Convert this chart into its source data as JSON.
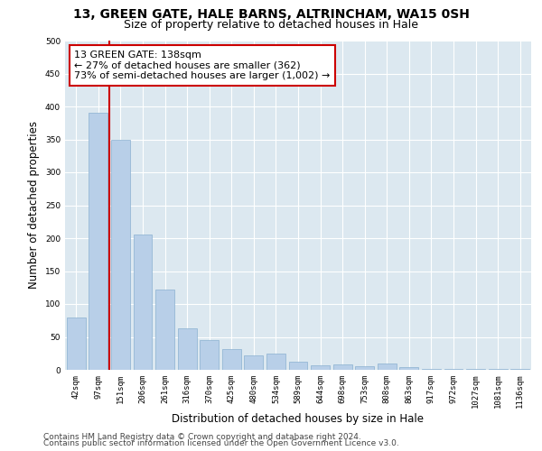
{
  "title_line1": "13, GREEN GATE, HALE BARNS, ALTRINCHAM, WA15 0SH",
  "title_line2": "Size of property relative to detached houses in Hale",
  "xlabel": "Distribution of detached houses by size in Hale",
  "ylabel": "Number of detached properties",
  "categories": [
    "42sqm",
    "97sqm",
    "151sqm",
    "206sqm",
    "261sqm",
    "316sqm",
    "370sqm",
    "425sqm",
    "480sqm",
    "534sqm",
    "589sqm",
    "644sqm",
    "698sqm",
    "753sqm",
    "808sqm",
    "863sqm",
    "917sqm",
    "972sqm",
    "1027sqm",
    "1081sqm",
    "1136sqm"
  ],
  "values": [
    80,
    390,
    350,
    205,
    122,
    63,
    45,
    32,
    22,
    24,
    13,
    7,
    8,
    6,
    10,
    4,
    2,
    2,
    1,
    1,
    1
  ],
  "bar_color": "#b8cfe8",
  "bar_edge_color": "#8ab0d0",
  "vline_color": "#cc0000",
  "annotation_text": "13 GREEN GATE: 138sqm\n← 27% of detached houses are smaller (362)\n73% of semi-detached houses are larger (1,002) →",
  "annotation_box_color": "#cc0000",
  "ylim": [
    0,
    500
  ],
  "yticks": [
    0,
    50,
    100,
    150,
    200,
    250,
    300,
    350,
    400,
    450,
    500
  ],
  "background_color": "#dce8f0",
  "footer_line1": "Contains HM Land Registry data © Crown copyright and database right 2024.",
  "footer_line2": "Contains public sector information licensed under the Open Government Licence v3.0.",
  "title_fontsize": 10,
  "subtitle_fontsize": 9,
  "axis_label_fontsize": 8.5,
  "tick_fontsize": 6.5,
  "annotation_fontsize": 8,
  "footer_fontsize": 6.5
}
